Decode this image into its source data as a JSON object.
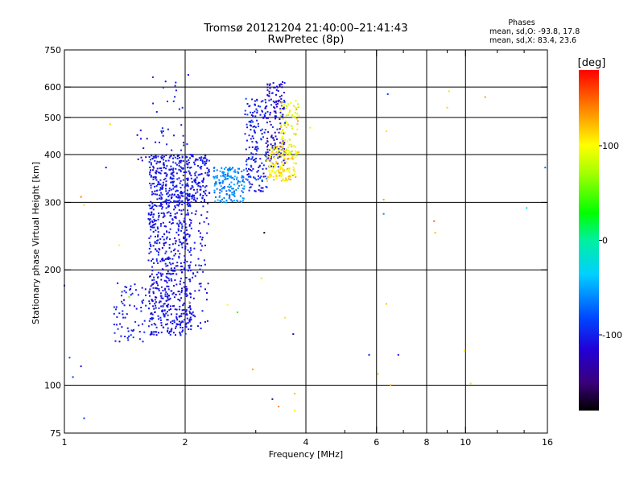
{
  "chart_data": {
    "type": "scatter",
    "title": "Tromsø 20121204 21:40:00–21:41:43",
    "subtitle": "RwPretec (8p)",
    "xlabel": "Frequency [MHz]",
    "ylabel": "Stationary phase Virtual Height [km]",
    "x_scale": "log",
    "y_scale": "log",
    "xlim": [
      1,
      16
    ],
    "ylim": [
      75,
      750
    ],
    "x_ticks": [
      1,
      2,
      4,
      6,
      8,
      10,
      16
    ],
    "x_tick_labels": [
      "1",
      "2",
      "4",
      "6",
      "8",
      "10",
      "16"
    ],
    "x_minor_ticks": [
      3,
      5,
      7,
      9,
      12,
      14
    ],
    "y_ticks": [
      75,
      100,
      200,
      300,
      400,
      500,
      600,
      750
    ],
    "y_tick_labels": [
      "75",
      "100",
      "200",
      "300",
      "400",
      "500",
      "600",
      "750"
    ],
    "grid": true,
    "phase_info": {
      "heading": "Phases",
      "line1": "mean, sd,O: -93.8, 17.8",
      "line2": "mean, sd,X:  83.4, 23.6"
    },
    "colorbar": {
      "label": "[deg]",
      "range": [
        -180,
        180
      ],
      "ticks": [
        100,
        0,
        -100
      ],
      "tick_labels": [
        "100",
        "0",
        "-100"
      ]
    },
    "clusters": [
      {
        "x": [
          1.33,
          1.6
        ],
        "y": [
          128,
          185
        ],
        "phase": [
          -115,
          -90
        ],
        "n": 70
      },
      {
        "x": [
          1.62,
          1.78
        ],
        "y": [
          135,
          300
        ],
        "phase": [
          -115,
          -95
        ],
        "n": 230
      },
      {
        "x": [
          1.78,
          2.08
        ],
        "y": [
          135,
          320
        ],
        "phase": [
          -115,
          -95
        ],
        "n": 380
      },
      {
        "x": [
          1.62,
          2.3
        ],
        "y": [
          300,
          400
        ],
        "phase": [
          -112,
          -95
        ],
        "n": 380
      },
      {
        "x": [
          2.0,
          2.3
        ],
        "y": [
          140,
          300
        ],
        "phase": [
          -112,
          -100
        ],
        "n": 70
      },
      {
        "x": [
          2.35,
          2.82
        ],
        "y": [
          300,
          370
        ],
        "phase": [
          -75,
          -45
        ],
        "n": 160
      },
      {
        "x": [
          2.82,
          3.2
        ],
        "y": [
          320,
          560
        ],
        "phase": [
          -120,
          -80
        ],
        "n": 170
      },
      {
        "x": [
          3.2,
          3.55
        ],
        "y": [
          370,
          620
        ],
        "phase": [
          -140,
          -90
        ],
        "n": 150
      },
      {
        "x": [
          3.2,
          3.8
        ],
        "y": [
          340,
          420
        ],
        "phase": [
          90,
          130
        ],
        "n": 140
      },
      {
        "x": [
          3.45,
          3.85
        ],
        "y": [
          400,
          560
        ],
        "phase": [
          70,
          135
        ],
        "n": 80
      },
      {
        "x": [
          1.65,
          2.05
        ],
        "y": [
          400,
          650
        ],
        "phase": [
          -110,
          -90
        ],
        "n": 30
      },
      {
        "x": [
          1.5,
          1.75
        ],
        "y": [
          340,
          470
        ],
        "phase": [
          -130,
          -110
        ],
        "n": 14
      }
    ],
    "scattered_points": [
      {
        "x": 1.03,
        "y": 118,
        "phase": -80
      },
      {
        "x": 1.05,
        "y": 105,
        "phase": -85
      },
      {
        "x": 1.1,
        "y": 112,
        "phase": -110
      },
      {
        "x": 1.12,
        "y": 82,
        "phase": -90
      },
      {
        "x": 1.1,
        "y": 310,
        "phase": 140
      },
      {
        "x": 1.12,
        "y": 295,
        "phase": 110
      },
      {
        "x": 1.3,
        "y": 480,
        "phase": 115
      },
      {
        "x": 1.37,
        "y": 232,
        "phase": 100
      },
      {
        "x": 1.27,
        "y": 370,
        "phase": -105
      },
      {
        "x": 2.55,
        "y": 162,
        "phase": 100
      },
      {
        "x": 2.7,
        "y": 155,
        "phase": 40
      },
      {
        "x": 2.95,
        "y": 110,
        "phase": 130
      },
      {
        "x": 3.15,
        "y": 250,
        "phase": -170
      },
      {
        "x": 3.55,
        "y": 150,
        "phase": 110
      },
      {
        "x": 3.72,
        "y": 136,
        "phase": -120
      },
      {
        "x": 3.75,
        "y": 95,
        "phase": 120
      },
      {
        "x": 3.3,
        "y": 92,
        "phase": -150
      },
      {
        "x": 3.42,
        "y": 88,
        "phase": 140
      },
      {
        "x": 3.75,
        "y": 86,
        "phase": 100
      },
      {
        "x": 4.1,
        "y": 470,
        "phase": 90
      },
      {
        "x": 5.75,
        "y": 120,
        "phase": -100
      },
      {
        "x": 6.05,
        "y": 107,
        "phase": 120
      },
      {
        "x": 6.25,
        "y": 305,
        "phase": 130
      },
      {
        "x": 6.25,
        "y": 280,
        "phase": -60
      },
      {
        "x": 6.35,
        "y": 163,
        "phase": 120
      },
      {
        "x": 6.35,
        "y": 460,
        "phase": 110
      },
      {
        "x": 6.4,
        "y": 575,
        "phase": -90
      },
      {
        "x": 6.5,
        "y": 100,
        "phase": 130
      },
      {
        "x": 6.8,
        "y": 120,
        "phase": -110
      },
      {
        "x": 8.35,
        "y": 268,
        "phase": 150
      },
      {
        "x": 8.4,
        "y": 250,
        "phase": 120
      },
      {
        "x": 9.1,
        "y": 585,
        "phase": 110
      },
      {
        "x": 9.0,
        "y": 530,
        "phase": 115
      },
      {
        "x": 9.95,
        "y": 123,
        "phase": 115
      },
      {
        "x": 10.3,
        "y": 101,
        "phase": 80
      },
      {
        "x": 11.2,
        "y": 565,
        "phase": 130
      },
      {
        "x": 14.2,
        "y": 290,
        "phase": -25
      },
      {
        "x": 15.8,
        "y": 370,
        "phase": -70
      },
      {
        "x": 1.0,
        "y": 182,
        "phase": -100
      },
      {
        "x": 1.45,
        "y": 170,
        "phase": 60
      },
      {
        "x": 2.05,
        "y": 165,
        "phase": 120
      },
      {
        "x": 3.1,
        "y": 190,
        "phase": 110
      }
    ]
  }
}
